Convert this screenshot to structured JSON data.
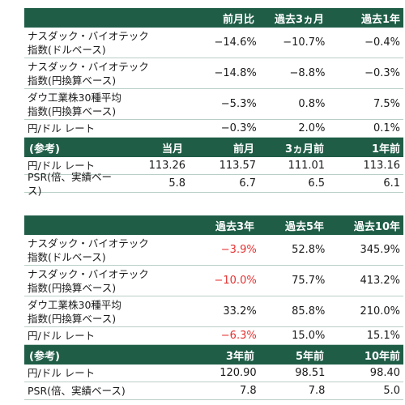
{
  "table1": {
    "header": [
      "",
      "前月比",
      "過去3ヵ月",
      "過去1年"
    ],
    "rows": [
      {
        "label_line1": "ナスダック・バイオテック",
        "label_line2": "指数(ドルベース)",
        "values": [
          "−14.6%",
          "−10.7%",
          "−0.4%"
        ]
      },
      {
        "label_line1": "ナスダック・バイオテック",
        "label_line2": "指数(円換算ベース)",
        "values": [
          "−14.8%",
          "−8.8%",
          "−0.3%"
        ]
      },
      {
        "label_line1": "ダウ工業株30種平均",
        "label_line2": "指数(円換算ベース)",
        "values": [
          "−5.3%",
          "0.8%",
          "7.5%"
        ]
      },
      {
        "label_line1": "円/ドル レート",
        "label_line2": "",
        "values": [
          "−0.3%",
          "2.0%",
          "0.1%"
        ]
      }
    ],
    "ref_header": [
      "(参考)",
      "当月",
      "前月",
      "3ヵ月前",
      "1年前"
    ],
    "ref_rows": [
      {
        "label": "円/ドル レート",
        "values": [
          "113.26",
          "113.57",
          "111.01",
          "113.16"
        ]
      },
      {
        "label": "PSR(倍、実績ベース)",
        "values": [
          "5.8",
          "6.7",
          "6.5",
          "6.1"
        ]
      }
    ]
  },
  "table2": {
    "header": [
      "",
      "過去3年",
      "過去5年",
      "過去10年"
    ],
    "rows": [
      {
        "label_line1": "ナスダック・バイオテック",
        "label_line2": "指数(ドルベース)",
        "values": [
          "−3.9%",
          "52.8%",
          "345.9%"
        ]
      },
      {
        "label_line1": "ナスダック・バイオテック",
        "label_line2": "指数(円換算ベース)",
        "values": [
          "−10.0%",
          "75.7%",
          "413.2%"
        ]
      },
      {
        "label_line1": "ダウ工業株30種平均",
        "label_line2": "指数(円換算ベース)",
        "values": [
          "33.2%",
          "85.8%",
          "210.0%"
        ]
      },
      {
        "label_line1": "円/ドル レート",
        "label_line2": "",
        "values": [
          "−6.3%",
          "15.0%",
          "15.1%"
        ]
      }
    ],
    "ref_header": [
      "(参考)",
      "3年前",
      "5年前",
      "10年前"
    ],
    "ref_rows": [
      {
        "label": "円/ドル レート",
        "values": [
          "120.90",
          "98.51",
          "98.40"
        ]
      },
      {
        "label": "PSR(倍、実績ベース)",
        "values": [
          "7.8",
          "7.8",
          "5.0"
        ]
      }
    ]
  },
  "colors": {
    "header_bg": "#1f5d47",
    "header_text": "#ffffff",
    "negative_highlight": "#e53030",
    "row_border": "#b9cfc5"
  }
}
